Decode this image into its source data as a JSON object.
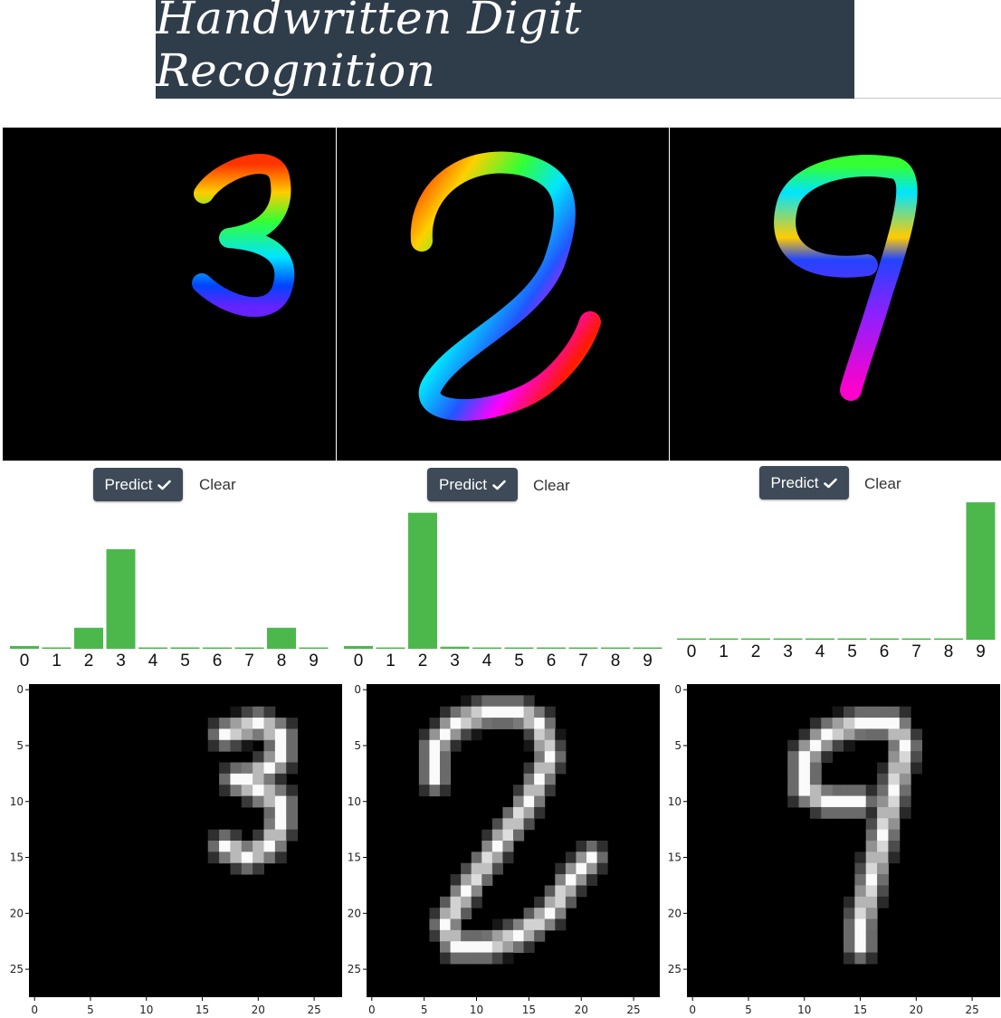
{
  "header": {
    "title": "Handwritten Digit Recognition"
  },
  "colors": {
    "banner": "#2f3d4b",
    "bar": "#4cb84c",
    "button": "#3e4a57"
  },
  "panels": [
    {
      "drawn_digit": "3",
      "predict_label": "Predict",
      "predict_icon": "check-icon",
      "clear_label": "Clear",
      "chart_data": {
        "type": "bar",
        "categories": [
          "0",
          "1",
          "2",
          "3",
          "4",
          "5",
          "6",
          "7",
          "8",
          "9"
        ],
        "values": [
          0.02,
          0.01,
          0.15,
          0.71,
          0.0,
          0.01,
          0.005,
          0.005,
          0.15,
          0.005
        ],
        "ylim": [
          0,
          1
        ]
      },
      "preview": {
        "x_ticks": [
          "0",
          "5",
          "10",
          "15",
          "20",
          "25"
        ],
        "y_ticks": [
          "0",
          "5",
          "10",
          "15",
          "20",
          "25"
        ]
      }
    },
    {
      "drawn_digit": "2",
      "predict_label": "Predict",
      "predict_icon": "check-icon",
      "clear_label": "Clear",
      "chart_data": {
        "type": "bar",
        "categories": [
          "0",
          "1",
          "2",
          "3",
          "4",
          "5",
          "6",
          "7",
          "8",
          "9"
        ],
        "values": [
          0.02,
          0.005,
          0.97,
          0.015,
          0.005,
          0.005,
          0.005,
          0.005,
          0.005,
          0.005
        ],
        "ylim": [
          0,
          1
        ]
      },
      "preview": {
        "x_ticks": [
          "0",
          "5",
          "10",
          "15",
          "20",
          "25"
        ],
        "y_ticks": [
          "0",
          "5",
          "10",
          "15",
          "20",
          "25"
        ]
      }
    },
    {
      "drawn_digit": "9",
      "predict_label": "Predict",
      "predict_icon": "check-icon",
      "clear_label": "Clear",
      "chart_data": {
        "type": "bar",
        "categories": [
          "0",
          "1",
          "2",
          "3",
          "4",
          "5",
          "6",
          "7",
          "8",
          "9"
        ],
        "values": [
          0.0,
          0.0,
          0.0,
          0.0,
          0.0,
          0.005,
          0.0,
          0.0,
          0.005,
          0.98
        ],
        "ylim": [
          0,
          1
        ]
      },
      "preview": {
        "x_ticks": [
          "0",
          "5",
          "10",
          "15",
          "20",
          "25"
        ],
        "y_ticks": [
          "0",
          "5",
          "10",
          "15",
          "20",
          "25"
        ]
      }
    }
  ]
}
